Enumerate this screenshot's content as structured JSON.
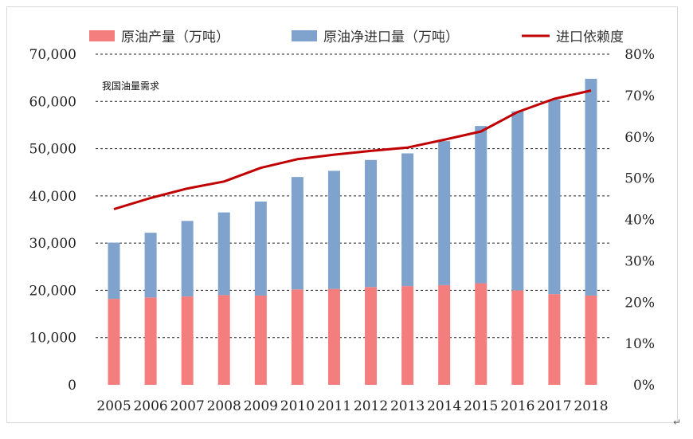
{
  "chart_data": {
    "type": "bar",
    "title": "",
    "annotation": "我国油量需求",
    "corner_mark": "↵",
    "categories": [
      "2005",
      "2006",
      "2007",
      "2008",
      "2009",
      "2010",
      "2011",
      "2012",
      "2013",
      "2014",
      "2015",
      "2016",
      "2017",
      "2018"
    ],
    "series": [
      {
        "name": "原油产量（万吨）",
        "kind": "bar",
        "stack": "crude",
        "axis": "left",
        "color": "#f47e7e",
        "values": [
          18200,
          18500,
          18700,
          19000,
          18900,
          20200,
          20300,
          20700,
          20900,
          21100,
          21500,
          20000,
          19200,
          18900
        ]
      },
      {
        "name": "原油净进口量（万吨）",
        "kind": "bar",
        "stack": "crude",
        "axis": "left",
        "color": "#7fa3cc",
        "values": [
          11900,
          13700,
          16000,
          17500,
          19900,
          23800,
          25000,
          26900,
          28100,
          30500,
          33300,
          37900,
          41200,
          45900
        ]
      },
      {
        "name": "进口依赖度",
        "kind": "line",
        "axis": "right",
        "color": "#c00000",
        "values": [
          42.5,
          45.2,
          47.5,
          49.2,
          52.5,
          54.6,
          55.7,
          56.6,
          57.4,
          59.3,
          61.3,
          66.0,
          69.2,
          71.2
        ]
      }
    ],
    "y_left": {
      "min": 0,
      "max": 70000,
      "ticks": [
        "0",
        "10,000",
        "20,000",
        "30,000",
        "40,000",
        "50,000",
        "60,000",
        "70,000"
      ]
    },
    "y_right": {
      "min": 0,
      "max": 80,
      "ticks": [
        "0%",
        "10%",
        "20%",
        "30%",
        "40%",
        "50%",
        "60%",
        "70%",
        "80%"
      ]
    },
    "grid": "dashed horizontal",
    "legend_position": "top"
  }
}
